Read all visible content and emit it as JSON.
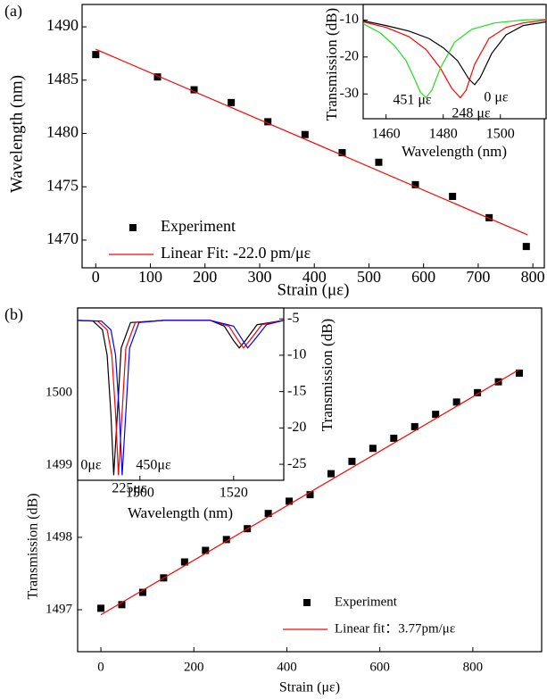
{
  "chart_data": [
    {
      "type": "scatter",
      "panel_label": "(a)",
      "xlabel": "Strain (με)",
      "ylabel": "Wavelength (nm)",
      "xlim": [
        -25,
        821
      ],
      "ylim": [
        1467.4,
        1492.1
      ],
      "xticks": [
        0,
        100,
        200,
        300,
        400,
        500,
        600,
        700,
        800
      ],
      "yticks": [
        1470,
        1475,
        1480,
        1485,
        1490
      ],
      "legend": "lower left",
      "series": [
        {
          "name": "Experiment",
          "mode": "markers",
          "color": "#000000",
          "x": [
            0,
            113,
            180,
            248,
            315,
            383,
            451,
            518,
            585,
            653,
            720,
            788
          ],
          "values": [
            1487.4,
            1485.3,
            1484.1,
            1482.9,
            1481.1,
            1479.9,
            1478.2,
            1477.3,
            1475.2,
            1474.1,
            1472.1,
            1469.4
          ]
        },
        {
          "name": "Linear Fit: -22.0 pm/με",
          "mode": "line",
          "color": "#ff0000",
          "x": [
            0,
            790
          ],
          "values": [
            1487.9,
            1470.5
          ]
        }
      ]
    },
    {
      "type": "line",
      "xlabel": "Wavelength (nm)",
      "ylabel": "Transmission (dB)",
      "xlim": [
        1452,
        1516
      ],
      "ylim": [
        -36.7,
        -5.8
      ],
      "xticks": [
        1460,
        1480,
        1500
      ],
      "yticks": [
        -10,
        -20,
        -30
      ],
      "y_axis": "left",
      "annotations": [
        "451 με",
        "248 με",
        "0 με"
      ],
      "series": [
        {
          "mode": "line",
          "color": "#000000",
          "x": [
            1452,
            1460,
            1468,
            1475,
            1480,
            1485,
            1489,
            1491,
            1493,
            1497,
            1502,
            1508,
            1516
          ],
          "values": [
            -10.2,
            -11.5,
            -13,
            -15,
            -17.5,
            -21,
            -26,
            -27.5,
            -25.5,
            -19,
            -14,
            -11.5,
            -10.5
          ]
        },
        {
          "mode": "line",
          "color": "#ff0000",
          "x": [
            1452,
            1460,
            1468,
            1474,
            1479,
            1483,
            1486,
            1488,
            1491,
            1496,
            1502,
            1508,
            1516
          ],
          "values": [
            -10.5,
            -12,
            -14.5,
            -18,
            -23,
            -28.5,
            -31,
            -29,
            -22,
            -15,
            -12,
            -10.8,
            -10
          ]
        },
        {
          "mode": "line",
          "color": "#22dd22",
          "x": [
            1452,
            1458,
            1463,
            1467,
            1470,
            1472,
            1474,
            1476,
            1479,
            1484,
            1490,
            1498,
            1508,
            1516
          ],
          "values": [
            -11,
            -13.5,
            -17,
            -21,
            -26,
            -29.5,
            -31,
            -29,
            -23,
            -16,
            -12.5,
            -10.8,
            -10,
            -9.8
          ]
        }
      ]
    },
    {
      "type": "scatter",
      "panel_label": "(b)",
      "xlabel": "Strain (με)",
      "ylabel": "Transmission (dB)",
      "xlim": [
        -50,
        948
      ],
      "ylim": [
        1496.42,
        1501.17
      ],
      "xticks": [
        0,
        200,
        400,
        600,
        800
      ],
      "yticks": [
        1497,
        1498,
        1499,
        1500
      ],
      "legend": "lower right",
      "series": [
        {
          "name": "Experiment",
          "mode": "markers",
          "color": "#000000",
          "x": [
            0,
            45,
            90,
            135,
            180,
            225,
            270,
            315,
            360,
            405,
            450,
            495,
            540,
            585,
            630,
            675,
            720,
            765,
            810,
            855,
            900
          ],
          "values": [
            1497.02,
            1497.07,
            1497.24,
            1497.44,
            1497.66,
            1497.82,
            1497.97,
            1498.12,
            1498.33,
            1498.5,
            1498.59,
            1498.88,
            1499.05,
            1499.23,
            1499.37,
            1499.53,
            1499.7,
            1499.87,
            1500.0,
            1500.15,
            1500.27
          ]
        },
        {
          "name": "Linear fit：3.77pm/με",
          "mode": "line",
          "color": "#ff0000",
          "x": [
            0,
            900
          ],
          "values": [
            1496.93,
            1500.32
          ]
        }
      ]
    },
    {
      "type": "line",
      "xlabel": "Wavelength (nm)",
      "ylabel": "Transmission (dB)",
      "xlim": [
        1486.7,
        1530.7
      ],
      "ylim": [
        -27.2,
        -3.5
      ],
      "xticks": [
        1500,
        1520
      ],
      "yticks": [
        -5,
        -10,
        -15,
        -20,
        -25
      ],
      "y_axis": "right",
      "annotations": [
        "0με",
        "450με",
        "225με"
      ],
      "series": [
        {
          "mode": "line",
          "color": "#000000",
          "x": [
            1486.7,
            1490,
            1492,
            1493,
            1493.8,
            1494.4,
            1495,
            1496,
            1498,
            1505,
            1515,
            1518,
            1520,
            1521.2,
            1522.5,
            1525,
            1530.7
          ],
          "values": [
            -5.2,
            -5.3,
            -6.5,
            -10,
            -18,
            -26.5,
            -20,
            -9,
            -5.5,
            -5.2,
            -5.2,
            -6,
            -8,
            -9,
            -8,
            -5.8,
            -5.2
          ]
        },
        {
          "mode": "line",
          "color": "#ff0000",
          "x": [
            1486.7,
            1491,
            1493,
            1494,
            1494.8,
            1495.4,
            1496,
            1497,
            1499,
            1505,
            1515,
            1519,
            1521,
            1522.1,
            1523.4,
            1526,
            1530.7
          ],
          "values": [
            -5.2,
            -5.3,
            -6.5,
            -10,
            -18,
            -26.5,
            -20,
            -9,
            -5.5,
            -5.2,
            -5.2,
            -6,
            -8,
            -9,
            -8,
            -5.8,
            -5.2
          ]
        },
        {
          "mode": "line",
          "color": "#0000ff",
          "x": [
            1486.7,
            1491.8,
            1493.8,
            1494.8,
            1495.6,
            1496.2,
            1496.8,
            1497.8,
            1499.8,
            1505,
            1515,
            1520,
            1522,
            1523,
            1524.3,
            1527,
            1530.7
          ],
          "values": [
            -5.2,
            -5.3,
            -6.5,
            -10,
            -18,
            -26.5,
            -20,
            -9,
            -5.5,
            -5.2,
            -5.2,
            -6,
            -8,
            -9,
            -8,
            -5.8,
            -5.2
          ]
        }
      ]
    }
  ]
}
